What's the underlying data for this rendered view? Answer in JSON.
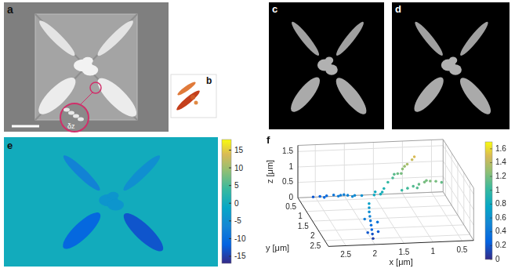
{
  "panels": [
    {
      "letter": "a",
      "inset_label": "δz"
    },
    {
      "letter": "b"
    },
    {
      "letter": "c"
    },
    {
      "letter": "d"
    },
    {
      "letter": "e",
      "background_value": 0,
      "arm_values": [
        -7,
        -5,
        -11,
        -13
      ],
      "center_value": -4,
      "colorbar": {
        "range": [
          -17,
          18
        ],
        "ticks": [
          -15,
          -10,
          -5,
          0,
          5,
          10,
          15
        ]
      }
    }
  ],
  "chart_data": {
    "panel": "f",
    "type": "scatter",
    "xlabel": "x [μm]",
    "ylabel": "y [μm]",
    "zlabel": "z [μm]",
    "xlim": [
      0.3,
      2.8
    ],
    "ylim": [
      0.3,
      2.8
    ],
    "zlim": [
      0,
      1.7
    ],
    "xticks": [
      0.5,
      1,
      1.5,
      2,
      2.5
    ],
    "yticks": [
      0.5,
      1,
      1.5,
      2,
      2.5
    ],
    "zticks": [
      0,
      0.5,
      1,
      1.5
    ],
    "grid": true,
    "points": [
      [
        1.9,
        1.25,
        0.6
      ],
      [
        2.0,
        1.15,
        0.55
      ],
      [
        2.1,
        1.05,
        0.5
      ],
      [
        2.2,
        0.95,
        0.45
      ],
      [
        2.3,
        0.85,
        0.4
      ],
      [
        2.4,
        0.75,
        0.32
      ],
      [
        2.5,
        0.68,
        0.26
      ],
      [
        2.6,
        0.6,
        0.2
      ],
      [
        2.05,
        1.2,
        0.55
      ],
      [
        2.25,
        1.0,
        0.45
      ],
      [
        2.45,
        0.8,
        0.3
      ],
      [
        2.15,
        0.98,
        0.48
      ],
      [
        1.9,
        1.85,
        0.72
      ],
      [
        1.92,
        1.95,
        0.65
      ],
      [
        1.94,
        2.05,
        0.58
      ],
      [
        1.95,
        2.15,
        0.5
      ],
      [
        1.96,
        2.25,
        0.42
      ],
      [
        1.97,
        2.35,
        0.34
      ],
      [
        1.98,
        2.45,
        0.26
      ],
      [
        1.99,
        2.55,
        0.18
      ],
      [
        2.0,
        2.65,
        0.1
      ],
      [
        2.05,
        2.2,
        0.45
      ],
      [
        1.85,
        2.3,
        0.4
      ],
      [
        2.06,
        2.5,
        0.2
      ],
      [
        1.88,
        2.5,
        0.22
      ],
      [
        1.45,
        1.25,
        1.0
      ],
      [
        1.35,
        1.17,
        1.08
      ],
      [
        1.25,
        1.1,
        1.17
      ],
      [
        1.15,
        1.02,
        1.26
      ],
      [
        1.05,
        0.93,
        1.35
      ],
      [
        0.95,
        0.85,
        1.44
      ],
      [
        0.9,
        0.8,
        1.5
      ],
      [
        1.3,
        1.05,
        1.12
      ],
      [
        1.1,
        0.95,
        1.3
      ],
      [
        1.2,
        1.15,
        1.2
      ],
      [
        1.3,
        1.68,
        1.0
      ],
      [
        1.2,
        1.67,
        1.05
      ],
      [
        1.1,
        1.66,
        1.1
      ],
      [
        1.0,
        1.65,
        1.15
      ],
      [
        0.9,
        1.63,
        1.2
      ],
      [
        0.8,
        1.62,
        1.22
      ],
      [
        0.7,
        1.61,
        1.2
      ],
      [
        0.6,
        1.6,
        1.15
      ],
      [
        1.05,
        1.75,
        1.1
      ],
      [
        0.85,
        1.55,
        1.2
      ],
      [
        1.6,
        1.5,
        0.85
      ],
      [
        1.7,
        1.4,
        0.8
      ],
      [
        1.65,
        1.6,
        0.85
      ],
      [
        1.55,
        1.4,
        0.9
      ],
      [
        1.75,
        1.55,
        0.8
      ]
    ],
    "colorbar": {
      "range": [
        0,
        1.7
      ],
      "ticks": [
        0,
        0.2,
        0.4,
        0.6,
        0.8,
        1,
        1.2,
        1.4,
        1.6
      ]
    }
  }
}
